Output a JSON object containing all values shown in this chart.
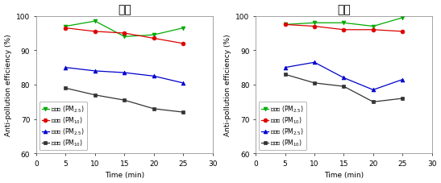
{
  "title_left": "상부",
  "title_right": "하부",
  "xlabel": "Time (min)",
  "ylabel": "Anti-pollution efficiency (%)",
  "x": [
    5,
    10,
    15,
    20,
    25
  ],
  "xlim": [
    0,
    30
  ],
  "ylim": [
    60,
    100
  ],
  "yticks": [
    60,
    70,
    80,
    90,
    100
  ],
  "xticks": [
    0,
    5,
    10,
    15,
    20,
    25,
    30
  ],
  "left": {
    "exp_pm25": [
      97.0,
      98.5,
      94.0,
      94.5,
      96.5
    ],
    "exp_pm10": [
      96.5,
      95.5,
      95.0,
      93.5,
      92.0
    ],
    "ctrl_pm25": [
      85.0,
      84.0,
      83.5,
      82.5,
      80.5
    ],
    "ctrl_pm10": [
      79.0,
      77.0,
      75.5,
      73.0,
      72.0
    ]
  },
  "right": {
    "exp_pm25": [
      97.5,
      98.0,
      98.0,
      97.0,
      99.5
    ],
    "exp_pm10": [
      97.5,
      97.0,
      96.0,
      96.0,
      95.5
    ],
    "ctrl_pm25": [
      85.0,
      86.5,
      82.0,
      78.5,
      81.5
    ],
    "ctrl_pm10": [
      83.0,
      80.5,
      79.5,
      75.0,
      76.0
    ]
  },
  "colors": {
    "exp_pm25": "#00aa00",
    "exp_pm10": "#dd0000",
    "ctrl_pm25": "#0000cc",
    "ctrl_pm10": "#333333"
  },
  "legend_labels": {
    "exp_pm25": "실험군 (PM$_{2.5}$)",
    "exp_pm10": "실험군 (PM$_{10}$)",
    "ctrl_pm25": "대조군 (PM$_{2.5}$)",
    "ctrl_pm10": "대조군 (PM$_{10}$)"
  },
  "markers": {
    "exp_pm25": "v",
    "exp_pm10": "o",
    "ctrl_pm25": "^",
    "ctrl_pm10": "s"
  },
  "title_fontsize": 10,
  "label_fontsize": 6.5,
  "tick_fontsize": 6.5,
  "legend_fontsize": 5.5
}
